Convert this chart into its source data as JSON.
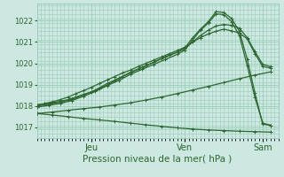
{
  "xlabel": "Pression niveau de la mer( hPa )",
  "bg_color": "#cce8e0",
  "grid_color": "#99ccbb",
  "line_color": "#2d6630",
  "xlim": [
    0,
    62
  ],
  "ylim": [
    1016.5,
    1022.8
  ],
  "yticks": [
    1017,
    1018,
    1019,
    1020,
    1021,
    1022
  ],
  "xtick_labels": [
    [
      "Jeu",
      14
    ],
    [
      "Ven",
      38
    ],
    [
      "Sam",
      58
    ]
  ],
  "vlines": [
    14,
    38,
    58
  ],
  "series": [
    {
      "x": [
        0,
        2,
        4,
        6,
        8,
        10,
        12,
        14,
        16,
        18,
        20,
        22,
        24,
        26,
        28,
        30,
        32,
        34,
        36,
        38,
        40,
        42,
        44,
        46,
        48,
        50,
        52,
        54,
        56,
        58,
        60
      ],
      "y": [
        1018.05,
        1018.1,
        1018.15,
        1018.22,
        1018.3,
        1018.42,
        1018.55,
        1018.65,
        1018.82,
        1018.98,
        1019.18,
        1019.38,
        1019.55,
        1019.72,
        1019.88,
        1020.05,
        1020.22,
        1020.38,
        1020.52,
        1020.68,
        1021.0,
        1021.3,
        1021.55,
        1021.75,
        1021.82,
        1021.78,
        1021.65,
        1021.2,
        1020.55,
        1019.95,
        1019.85
      ],
      "marker": "+"
    },
    {
      "x": [
        0,
        3,
        6,
        9,
        12,
        15,
        18,
        21,
        24,
        27,
        30,
        33,
        36,
        38,
        40,
        42,
        44,
        46,
        48,
        50,
        52,
        54,
        56,
        58,
        60
      ],
      "y": [
        1018.0,
        1018.08,
        1018.18,
        1018.32,
        1018.52,
        1018.75,
        1019.05,
        1019.3,
        1019.58,
        1019.82,
        1020.05,
        1020.3,
        1020.52,
        1020.72,
        1021.2,
        1021.6,
        1021.95,
        1022.42,
        1022.38,
        1022.1,
        1021.5,
        1020.2,
        1018.6,
        1017.15,
        1017.1
      ],
      "marker": "+"
    },
    {
      "x": [
        0,
        3,
        6,
        9,
        12,
        15,
        18,
        21,
        24,
        27,
        30,
        33,
        36,
        38,
        40,
        42,
        44,
        46,
        48,
        50,
        52,
        54,
        56,
        58,
        60
      ],
      "y": [
        1017.95,
        1018.03,
        1018.12,
        1018.26,
        1018.46,
        1018.68,
        1018.95,
        1019.2,
        1019.48,
        1019.72,
        1019.95,
        1020.18,
        1020.42,
        1020.62,
        1021.1,
        1021.55,
        1021.88,
        1022.32,
        1022.28,
        1021.95,
        1021.3,
        1019.9,
        1018.4,
        1017.2,
        1017.1
      ],
      "marker": "+"
    },
    {
      "x": [
        0,
        2,
        4,
        6,
        8,
        10,
        12,
        14,
        16,
        18,
        20,
        22,
        24,
        26,
        28,
        30,
        32,
        34,
        36,
        38,
        40,
        42,
        44,
        46,
        48,
        50,
        52,
        54,
        56,
        58,
        60
      ],
      "y": [
        1018.05,
        1018.12,
        1018.2,
        1018.3,
        1018.42,
        1018.58,
        1018.72,
        1018.88,
        1019.05,
        1019.22,
        1019.38,
        1019.55,
        1019.68,
        1019.85,
        1020.0,
        1020.15,
        1020.3,
        1020.45,
        1020.6,
        1020.75,
        1021.0,
        1021.2,
        1021.38,
        1021.5,
        1021.6,
        1021.52,
        1021.42,
        1021.15,
        1020.45,
        1019.85,
        1019.78
      ],
      "marker": "+"
    },
    {
      "x": [
        0,
        4,
        8,
        12,
        16,
        20,
        24,
        28,
        32,
        36,
        40,
        44,
        48,
        52,
        56,
        60
      ],
      "y": [
        1017.65,
        1017.72,
        1017.8,
        1017.88,
        1017.95,
        1018.05,
        1018.15,
        1018.28,
        1018.42,
        1018.58,
        1018.75,
        1018.92,
        1019.1,
        1019.28,
        1019.45,
        1019.6
      ],
      "marker": "+"
    },
    {
      "x": [
        0,
        4,
        8,
        12,
        16,
        20,
        24,
        28,
        32,
        36,
        40,
        44,
        48,
        52,
        56,
        60
      ],
      "y": [
        1017.65,
        1017.58,
        1017.5,
        1017.42,
        1017.35,
        1017.28,
        1017.2,
        1017.12,
        1017.05,
        1016.98,
        1016.92,
        1016.88,
        1016.85,
        1016.82,
        1016.8,
        1016.78
      ],
      "marker": "+"
    }
  ],
  "marker_size": 2.5,
  "linewidth": 0.9
}
